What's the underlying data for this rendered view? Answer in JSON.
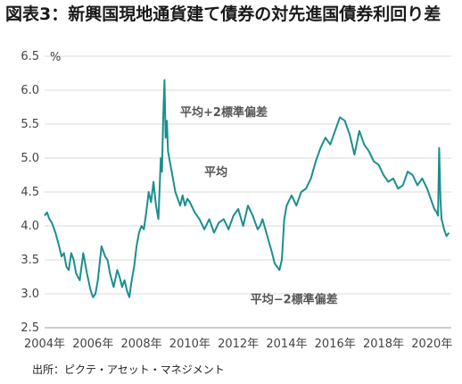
{
  "title": "図表3：新興国現地通貨建て債券の対先進国債券利回り差",
  "source": "出所：ピクテ・アセット・マネジメント",
  "chart_data": {
    "type": "line",
    "ylabel": "%",
    "ylim": [
      2.5,
      6.5
    ],
    "yticks": [
      "2.5",
      "3.0",
      "3.5",
      "4.0",
      "4.5",
      "5.0",
      "5.5",
      "6.0",
      "6.5"
    ],
    "xlim": [
      2004,
      2020.8
    ],
    "xticks": [
      "2004年",
      "2006年",
      "2008年",
      "2010年",
      "2012年",
      "2014年",
      "2016年",
      "2018年",
      "2020年"
    ],
    "line_color": "#1a8f8c",
    "grid": true,
    "annotations": [
      {
        "text": "平均+2標準偏差",
        "x": 2009.6,
        "y": 5.62
      },
      {
        "text": "平均",
        "x": 2010.6,
        "y": 4.74
      },
      {
        "text": "平均−2標準偏差",
        "x": 2012.5,
        "y": 2.86
      }
    ],
    "series": [
      {
        "x": [
          2004.0,
          2004.1,
          2004.2,
          2004.3,
          2004.45,
          2004.6,
          2004.7,
          2004.8,
          2004.9,
          2005.0,
          2005.1,
          2005.2,
          2005.3,
          2005.45,
          2005.6,
          2005.75,
          2005.9,
          2006.0,
          2006.1,
          2006.2,
          2006.35,
          2006.5,
          2006.6,
          2006.7,
          2006.85,
          2007.0,
          2007.1,
          2007.2,
          2007.3,
          2007.4,
          2007.5,
          2007.6,
          2007.7,
          2007.8,
          2007.9,
          2008.0,
          2008.1,
          2008.2,
          2008.3,
          2008.4,
          2008.5,
          2008.6,
          2008.7,
          2008.8,
          2008.85,
          2008.9,
          2008.95,
          2009.0,
          2009.05,
          2009.1,
          2009.2,
          2009.3,
          2009.4,
          2009.5,
          2009.6,
          2009.7,
          2009.8,
          2009.9,
          2010.0,
          2010.2,
          2010.4,
          2010.6,
          2010.8,
          2011.0,
          2011.2,
          2011.4,
          2011.6,
          2011.8,
          2012.0,
          2012.2,
          2012.4,
          2012.6,
          2012.8,
          2012.9,
          2013.0,
          2013.2,
          2013.4,
          2013.5,
          2013.6,
          2013.7,
          2013.8,
          2013.9,
          2014.0,
          2014.2,
          2014.4,
          2014.6,
          2014.8,
          2015.0,
          2015.2,
          2015.4,
          2015.6,
          2015.8,
          2016.0,
          2016.2,
          2016.4,
          2016.6,
          2016.8,
          2017.0,
          2017.2,
          2017.4,
          2017.6,
          2017.8,
          2018.0,
          2018.2,
          2018.4,
          2018.6,
          2018.8,
          2019.0,
          2019.2,
          2019.4,
          2019.6,
          2019.8,
          2020.0,
          2020.1,
          2020.2,
          2020.25,
          2020.3,
          2020.35,
          2020.4,
          2020.5,
          2020.6,
          2020.7
        ],
        "y": [
          4.15,
          4.2,
          4.1,
          4.05,
          3.9,
          3.7,
          3.55,
          3.6,
          3.4,
          3.35,
          3.6,
          3.5,
          3.3,
          3.2,
          3.6,
          3.3,
          3.05,
          2.95,
          3.0,
          3.2,
          3.7,
          3.55,
          3.5,
          3.3,
          3.1,
          3.35,
          3.25,
          3.1,
          3.2,
          3.05,
          2.95,
          3.2,
          3.4,
          3.7,
          3.9,
          4.0,
          3.95,
          4.2,
          4.5,
          4.35,
          4.65,
          4.3,
          4.1,
          5.0,
          4.8,
          5.6,
          6.15,
          5.3,
          5.55,
          5.1,
          4.9,
          4.7,
          4.5,
          4.4,
          4.3,
          4.45,
          4.3,
          4.4,
          4.35,
          4.2,
          4.1,
          3.95,
          4.1,
          3.9,
          4.05,
          4.1,
          3.95,
          4.15,
          4.25,
          4.0,
          4.3,
          4.15,
          3.95,
          4.0,
          4.1,
          3.85,
          3.6,
          3.45,
          3.4,
          3.35,
          3.5,
          4.1,
          4.3,
          4.45,
          4.3,
          4.5,
          4.55,
          4.7,
          4.95,
          5.15,
          5.3,
          5.2,
          5.4,
          5.6,
          5.55,
          5.35,
          5.05,
          5.4,
          5.2,
          5.1,
          4.95,
          4.9,
          4.75,
          4.65,
          4.7,
          4.55,
          4.6,
          4.8,
          4.75,
          4.6,
          4.7,
          4.55,
          4.35,
          4.25,
          4.2,
          4.15,
          5.15,
          4.4,
          4.1,
          3.95,
          3.85,
          3.9
        ]
      }
    ]
  }
}
